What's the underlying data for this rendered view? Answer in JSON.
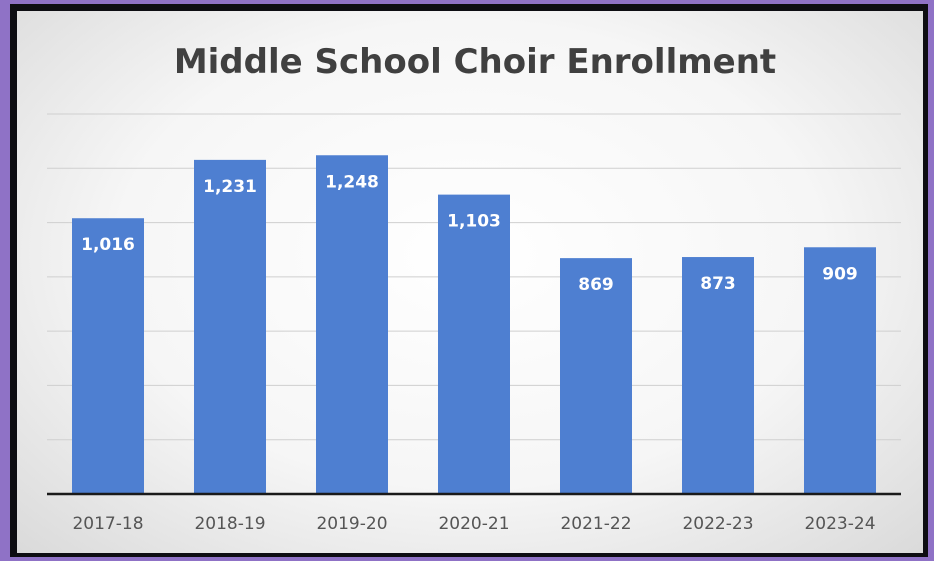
{
  "chart_data": {
    "type": "bar",
    "title": "Middle School Choir Enrollment",
    "categories": [
      "2017-18",
      "2018-19",
      "2019-20",
      "2020-21",
      "2021-22",
      "2022-23",
      "2023-24"
    ],
    "values": [
      1016,
      1231,
      1248,
      1103,
      869,
      873,
      909
    ],
    "data_labels": [
      "1,016",
      "1,231",
      "1,248",
      "1,103",
      "869",
      "873",
      "909"
    ],
    "xlabel": "",
    "ylabel": "",
    "ylim": [
      0,
      1400
    ],
    "y_tick_labels_visible": false,
    "grid": true,
    "legend": "none",
    "colors": {
      "bar": "#4e7fd1",
      "title": "#404040",
      "background": "#8f72c6"
    }
  }
}
